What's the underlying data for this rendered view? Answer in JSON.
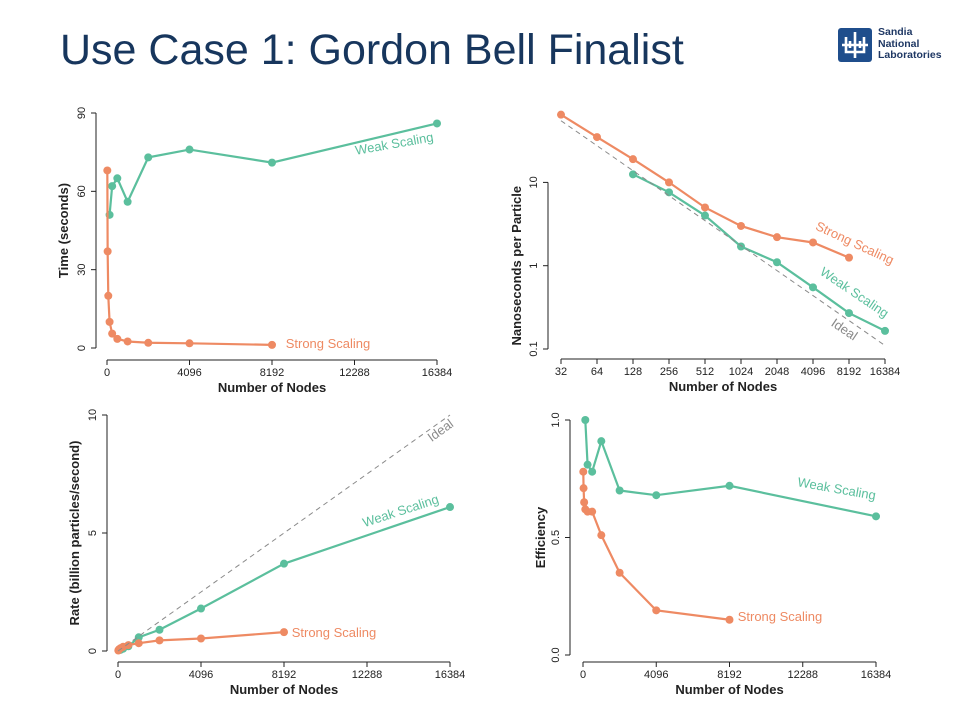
{
  "slide": {
    "title": "Use Case 1: Gordon Bell Finalist",
    "logo": {
      "lines": [
        "Sandia",
        "National",
        "Laboratories"
      ],
      "icon": "sandia-thunderbird-icon"
    }
  },
  "colors": {
    "strong": "#ee8a63",
    "weak": "#5bbf9d",
    "ideal": "#8a8a8a",
    "axis": "#222222",
    "title": "#17365d"
  },
  "chart_data": [
    {
      "type": "line",
      "xlabel": "Number of Nodes",
      "ylabel": "Time (seconds)",
      "xlim": [
        0,
        16384
      ],
      "ylim": [
        0,
        90
      ],
      "xticks": [
        0,
        4096,
        8192,
        12288,
        16384
      ],
      "xtick_labels": [
        "0",
        "4096",
        "8192",
        "12288",
        "16384"
      ],
      "yticks": [
        0,
        30,
        60,
        90
      ],
      "ytick_labels": [
        "0",
        "30",
        "60",
        "90"
      ],
      "grid": false,
      "series": [
        {
          "name": "Weak Scaling",
          "x": [
            128,
            256,
            512,
            1024,
            2048,
            4096,
            8192,
            16384
          ],
          "y": [
            51,
            62,
            65,
            56,
            73,
            76,
            71,
            86
          ]
        },
        {
          "name": "Strong Scaling",
          "x": [
            16,
            32,
            64,
            128,
            256,
            512,
            1024,
            2048,
            4096,
            8192
          ],
          "y": [
            68,
            37,
            20,
            10,
            5.5,
            3.5,
            2.5,
            2.0,
            1.8,
            1.2
          ]
        }
      ]
    },
    {
      "type": "line",
      "xlabel": "Number of Nodes",
      "ylabel": "Nanoseconds per Particle",
      "xscale": "log2",
      "yscale": "log10",
      "xlim": [
        32,
        16384
      ],
      "ylim": [
        0.1,
        70
      ],
      "xticks": [
        32,
        64,
        128,
        256,
        512,
        1024,
        2048,
        4096,
        8192,
        16384
      ],
      "xtick_labels": [
        "32",
        "64",
        "128",
        "256",
        "512",
        "1024",
        "2048",
        "4096",
        "8192",
        "16384"
      ],
      "yticks": [
        0.1,
        1,
        10
      ],
      "ytick_labels": [
        "0.1",
        "1",
        "10"
      ],
      "grid": false,
      "series": [
        {
          "name": "Strong Scaling",
          "x": [
            32,
            64,
            128,
            256,
            512,
            1024,
            2048,
            4096,
            8192
          ],
          "y": [
            65,
            35,
            19,
            10,
            5,
            3,
            2.2,
            1.9,
            1.25
          ]
        },
        {
          "name": "Weak Scaling",
          "x": [
            128,
            256,
            512,
            1024,
            2048,
            4096,
            8192,
            16384
          ],
          "y": [
            12.5,
            7.6,
            4.0,
            1.7,
            1.1,
            0.55,
            0.27,
            0.165
          ]
        },
        {
          "name": "Ideal",
          "style": "dashed",
          "x": [
            32,
            16384
          ],
          "y": [
            55,
            0.11
          ]
        }
      ]
    },
    {
      "type": "line",
      "xlabel": "Number of Nodes",
      "ylabel": "Rate (billion particles/second)",
      "xlim": [
        0,
        16384
      ],
      "ylim": [
        0,
        10
      ],
      "xticks": [
        0,
        4096,
        8192,
        12288,
        16384
      ],
      "xtick_labels": [
        "0",
        "4096",
        "8192",
        "12288",
        "16384"
      ],
      "yticks": [
        0,
        5,
        10
      ],
      "ytick_labels": [
        "0",
        "5",
        "10"
      ],
      "grid": false,
      "series": [
        {
          "name": "Weak Scaling",
          "x": [
            128,
            256,
            512,
            1024,
            2048,
            4096,
            8192,
            16384
          ],
          "y": [
            0.05,
            0.1,
            0.2,
            0.58,
            0.9,
            1.8,
            3.7,
            6.1
          ]
        },
        {
          "name": "Strong Scaling",
          "x": [
            16,
            32,
            64,
            128,
            256,
            512,
            1024,
            2048,
            4096,
            8192
          ],
          "y": [
            0.02,
            0.05,
            0.08,
            0.12,
            0.18,
            0.25,
            0.33,
            0.45,
            0.53,
            0.8
          ]
        },
        {
          "name": "Ideal",
          "style": "dashed",
          "x": [
            0,
            16384
          ],
          "y": [
            0,
            10
          ]
        }
      ]
    },
    {
      "type": "line",
      "xlabel": "Number of Nodes",
      "ylabel": "Efficiency",
      "xlim": [
        0,
        16384
      ],
      "ylim": [
        0,
        1
      ],
      "xticks": [
        0,
        4096,
        8192,
        12288,
        16384
      ],
      "xtick_labels": [
        "0",
        "4096",
        "8192",
        "12288",
        "16384"
      ],
      "yticks": [
        0,
        0.5,
        1
      ],
      "ytick_labels": [
        "0.0",
        "0.5",
        "1.0"
      ],
      "grid": false,
      "series": [
        {
          "name": "Weak Scaling",
          "x": [
            128,
            256,
            512,
            1024,
            2048,
            4096,
            8192,
            16384
          ],
          "y": [
            1.0,
            0.81,
            0.78,
            0.91,
            0.7,
            0.68,
            0.72,
            0.59
          ]
        },
        {
          "name": "Strong Scaling",
          "x": [
            16,
            32,
            64,
            128,
            256,
            512,
            1024,
            2048,
            4096,
            8192
          ],
          "y": [
            0.78,
            0.71,
            0.65,
            0.62,
            0.61,
            0.61,
            0.51,
            0.35,
            0.19,
            0.15
          ]
        }
      ]
    }
  ]
}
